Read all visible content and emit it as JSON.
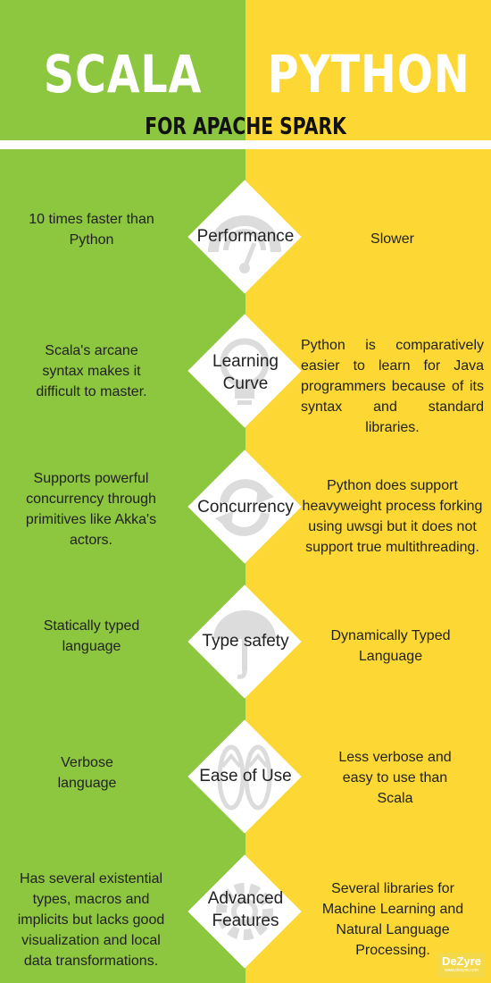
{
  "header": {
    "left_title": "SCALA",
    "right_title": "PYTHON",
    "subtitle": "FOR APACHE SPARK"
  },
  "colors": {
    "scala_green": "#8dc63f",
    "python_yellow": "#fdd835",
    "diamond": "#ffffff",
    "icon_gray": "#dcdcdc"
  },
  "rows": [
    {
      "topic": "Performance",
      "icon": "speedometer-icon",
      "scala": "10 times faster than Python",
      "python": "Slower"
    },
    {
      "topic": "Learning Curve",
      "icon": "lightbulb-icon",
      "scala": "Scala's arcane syntax makes it difficult to master.",
      "python": "Python is comparatively easier to learn for Java programmers because of its syntax and standard libraries."
    },
    {
      "topic": "Concurrency",
      "icon": "refresh-icon",
      "scala": "Supports powerful concurrency through primitives like Akka's actors.",
      "python": "Python does support heavyweight process forking using uwsgi but it does not support true multithreading."
    },
    {
      "topic": "Type safety",
      "icon": "umbrella-icon",
      "scala": "Statically typed language",
      "python": "Dynamically Typed Language"
    },
    {
      "topic": "Ease of Use",
      "icon": "flip-flops-icon",
      "scala": "Verbose language",
      "python": "Less verbose and easy to use than Scala"
    },
    {
      "topic": "Advanced Features",
      "icon": "gear-icon",
      "scala": "Has several existential types, macros and implicits but lacks good visualization and local data transformations.",
      "python": "Several libraries for Machine Learning and Natural Language Processing."
    }
  ],
  "logo": {
    "name": "DeZyre",
    "tagline": "www.dezyre.com"
  }
}
